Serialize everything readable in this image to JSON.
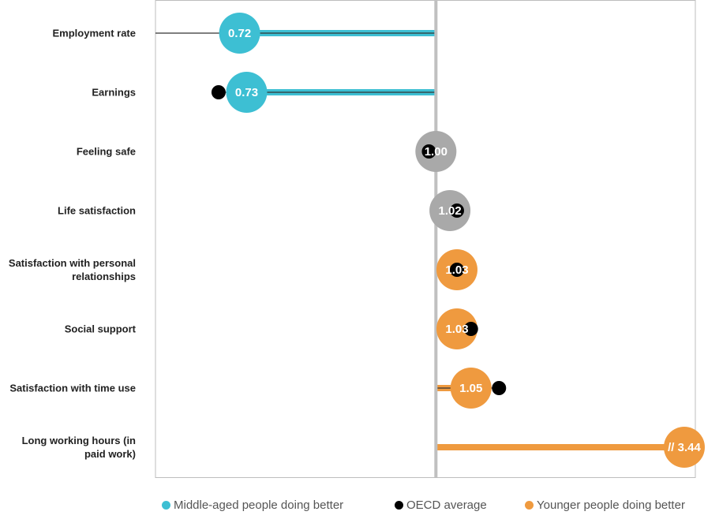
{
  "chart_data": {
    "type": "dot",
    "categories": [
      "Employment rate",
      "Earnings",
      "Feeling safe",
      "Life satisfaction",
      "Satisfaction with personal relationships",
      "Social support",
      "Satisfaction with time use",
      "Long working hours (in paid work)"
    ],
    "values": [
      0.72,
      0.73,
      1.0,
      1.02,
      1.03,
      1.03,
      1.05,
      3.44
    ],
    "value_labels": [
      "0.72",
      "0.73",
      "1.00",
      "1.02",
      "1.03",
      "1.03",
      "1.05",
      "// 3.44"
    ],
    "point_colors": [
      "#3dbfd3",
      "#3dbfd3",
      "#a9a9a9",
      "#a9a9a9",
      "#ef9a3f",
      "#ef9a3f",
      "#ef9a3f",
      "#ef9a3f"
    ],
    "oecd_values": [
      0.55,
      0.69,
      0.99,
      1.03,
      1.03,
      1.05,
      1.09,
      null
    ],
    "reference": 1,
    "xlim": [
      0.6,
      1.37
    ],
    "legend": [
      {
        "name": "Middle-aged people doing better",
        "color": "#3dbfd3"
      },
      {
        "name": "OECD average",
        "color": "#000000"
      },
      {
        "name": "Younger people doing better",
        "color": "#ef9a3f"
      }
    ]
  }
}
